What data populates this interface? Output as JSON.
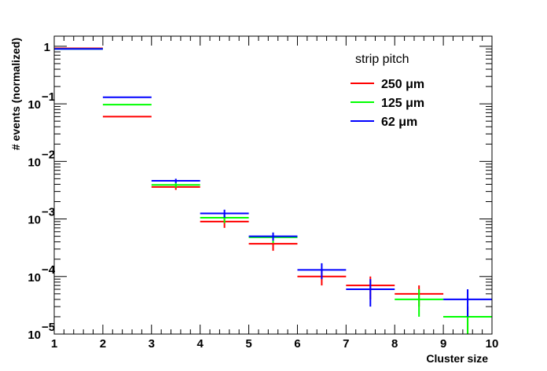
{
  "chart_data": {
    "type": "step-histogram",
    "xlabel": "Cluster size",
    "ylabel": "# events (normalized)",
    "xlim": [
      1,
      10
    ],
    "ylim": [
      1e-05,
      1.5
    ],
    "yscale": "log",
    "x_ticks": [
      "1",
      "2",
      "3",
      "4",
      "5",
      "6",
      "7",
      "8",
      "9",
      "10"
    ],
    "y_ticks": [
      {
        "value": 1,
        "label": "1",
        "exp": ""
      },
      {
        "value": 0.1,
        "label": "10",
        "exp": "−1"
      },
      {
        "value": 0.01,
        "label": "10",
        "exp": "−2"
      },
      {
        "value": 0.001,
        "label": "10",
        "exp": "−3"
      },
      {
        "value": 0.0001,
        "label": "10",
        "exp": "−4"
      },
      {
        "value": 1e-05,
        "label": "10",
        "exp": "−5"
      }
    ],
    "legend": {
      "title": "strip pitch",
      "position": "top-right"
    },
    "series": [
      {
        "name": "250  μm",
        "color": "#ff0000",
        "bins": [
          {
            "x": [
              1,
              2
            ],
            "y": 0.92,
            "err": 0.003
          },
          {
            "x": [
              2,
              3
            ],
            "y": 0.06,
            "err": 0.001
          },
          {
            "x": [
              3,
              4
            ],
            "y": 0.0036,
            "err": 0.0004
          },
          {
            "x": [
              4,
              5
            ],
            "y": 0.0009,
            "err": 0.0002
          },
          {
            "x": [
              5,
              6
            ],
            "y": 0.00037,
            "err": 9e-05
          },
          {
            "x": [
              6,
              7
            ],
            "y": 0.0001,
            "err": 3e-05
          },
          {
            "x": [
              7,
              8
            ],
            "y": 7e-05,
            "err": 3e-05
          },
          {
            "x": [
              8,
              9
            ],
            "y": 5e-05,
            "err": 2e-05
          },
          {
            "x": [
              9,
              10
            ],
            "y": 2e-05,
            "err": 1e-05
          }
        ]
      },
      {
        "name": "125  μm",
        "color": "#00ff00",
        "bins": [
          {
            "x": [
              1,
              2
            ],
            "y": 0.9,
            "err": 0.003
          },
          {
            "x": [
              2,
              3
            ],
            "y": 0.097,
            "err": 0.002
          },
          {
            "x": [
              3,
              4
            ],
            "y": 0.0039,
            "err": 0.0004
          },
          {
            "x": [
              4,
              5
            ],
            "y": 0.00105,
            "err": 0.0002
          },
          {
            "x": [
              5,
              6
            ],
            "y": 0.00048,
            "err": 0.0001
          },
          {
            "x": [
              9,
              10
            ],
            "y": 2e-05,
            "err": 1e-05
          },
          {
            "x": [
              8,
              9
            ],
            "y": 4e-05,
            "err": 2e-05
          }
        ]
      },
      {
        "name": "62  μm",
        "color": "#0000ff",
        "bins": [
          {
            "x": [
              1,
              2
            ],
            "y": 0.9,
            "err": 0.003
          },
          {
            "x": [
              2,
              3
            ],
            "y": 0.13,
            "err": 0.003
          },
          {
            "x": [
              3,
              4
            ],
            "y": 0.0046,
            "err": 0.0004
          },
          {
            "x": [
              4,
              5
            ],
            "y": 0.00125,
            "err": 0.0002
          },
          {
            "x": [
              5,
              6
            ],
            "y": 0.0005,
            "err": 8e-05
          },
          {
            "x": [
              6,
              7
            ],
            "y": 0.00013,
            "err": 4e-05
          },
          {
            "x": [
              7,
              8
            ],
            "y": 6e-05,
            "err": 3e-05
          },
          {
            "x": [
              9,
              10
            ],
            "y": 4e-05,
            "err": 2e-05
          }
        ]
      }
    ]
  }
}
